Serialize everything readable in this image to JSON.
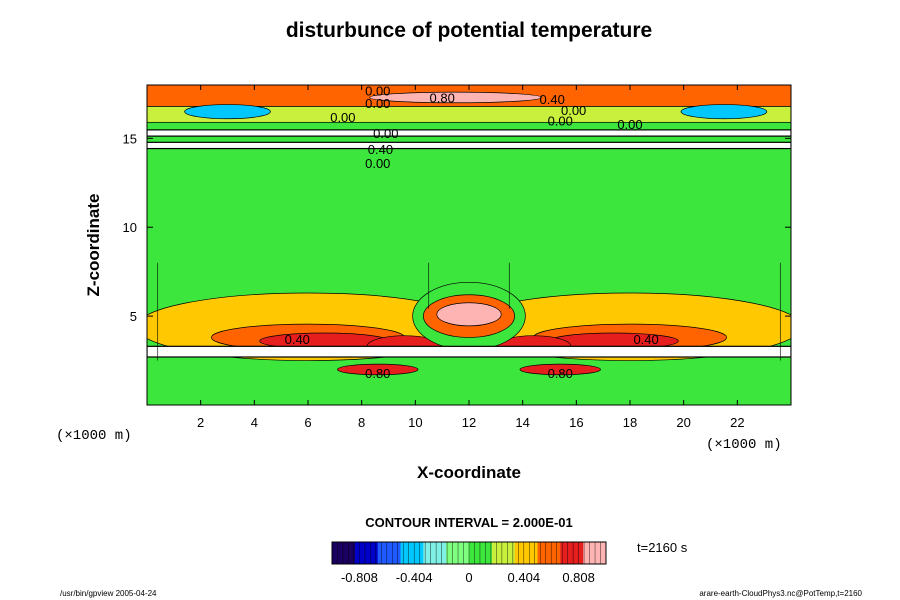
{
  "chart_data": {
    "type": "heatmap",
    "title": "disturbunce of potential temperature",
    "xlabel": "X-coordinate",
    "ylabel": "Z-coordinate",
    "x_unit": "(×1000 m)",
    "y_unit": "(×1000 m)",
    "xlim": [
      0,
      24
    ],
    "ylim": [
      0,
      18
    ],
    "x_ticks": [
      2,
      4,
      6,
      8,
      10,
      12,
      14,
      16,
      18,
      20,
      22
    ],
    "x_tick_labels": [
      "2",
      "4",
      "6",
      "8",
      "10",
      "12",
      "14",
      "16",
      "18",
      "20",
      "22"
    ],
    "y_ticks": [
      5,
      10,
      15
    ],
    "y_tick_labels": [
      "5",
      "10",
      "15"
    ],
    "contour_interval_label": "CONTOUR INTERVAL = 2.000E-01",
    "time_label": "t=2160 s",
    "colorbar": {
      "min": -1.01,
      "max": 1.01,
      "ticks": [
        -0.808,
        -0.404,
        0,
        0.404,
        0.808
      ],
      "tick_labels": [
        "-0.808",
        "-0.404",
        "0",
        "0.404",
        "0.808"
      ],
      "colors": [
        "#1a0060",
        "#0000c8",
        "#1e5aff",
        "#00c8ff",
        "#7ff0e6",
        "#7fff7f",
        "#3ce63c",
        "#c8f03c",
        "#ffc800",
        "#ff6400",
        "#e61e1e",
        "#ffb4b4"
      ]
    },
    "field_features": [
      {
        "name": "background",
        "value": 0.1
      },
      {
        "name": "central thermal (bubble)",
        "x": 12,
        "z": 5,
        "value": 0.85
      },
      {
        "name": "left warm lobe",
        "x": 6,
        "z": 3.8,
        "value": 0.55
      },
      {
        "name": "right warm lobe",
        "x": 18,
        "z": 3.8,
        "value": 0.55
      },
      {
        "name": "white band (saturated)",
        "z": 3.0,
        "value": 1.2
      },
      {
        "name": "lower white band",
        "z": 1.5,
        "value": 1.2
      },
      {
        "name": "white band aloft",
        "z": 14.6,
        "value": 1.2
      },
      {
        "name": "white band aloft",
        "z": 15.3,
        "value": 1.2
      },
      {
        "name": "upper layer",
        "z": 16.3,
        "value": 0.3
      },
      {
        "name": "top layer",
        "z": 17.3,
        "value": 0.6
      }
    ],
    "contour_labels": [
      {
        "text": "0.00",
        "x": 8.6,
        "z": 17.7
      },
      {
        "text": "0.00",
        "x": 8.6,
        "z": 17.0
      },
      {
        "text": "0.80",
        "x": 11.0,
        "z": 17.3
      },
      {
        "text": "0.40",
        "x": 15.1,
        "z": 17.2
      },
      {
        "text": "0.00",
        "x": 7.3,
        "z": 16.2
      },
      {
        "text": "0.00",
        "x": 15.9,
        "z": 16.6
      },
      {
        "text": "0.00",
        "x": 15.4,
        "z": 16.0
      },
      {
        "text": "0.00",
        "x": 18.0,
        "z": 15.8
      },
      {
        "text": "0.00",
        "x": 8.9,
        "z": 15.3
      },
      {
        "text": "0.40",
        "x": 8.7,
        "z": 14.4
      },
      {
        "text": "0.00",
        "x": 8.6,
        "z": 13.6
      },
      {
        "text": "0.40",
        "x": 5.6,
        "z": 3.7
      },
      {
        "text": "0.40",
        "x": 18.6,
        "z": 3.7
      },
      {
        "text": "0.80",
        "x": 8.6,
        "z": 1.8
      },
      {
        "text": "0.80",
        "x": 15.4,
        "z": 1.8
      }
    ]
  },
  "footer": {
    "left": "/usr/bin/gpview 2005-04-24",
    "right": "arare-earth-CloudPhys3.nc@PotTemp,t=2160"
  }
}
